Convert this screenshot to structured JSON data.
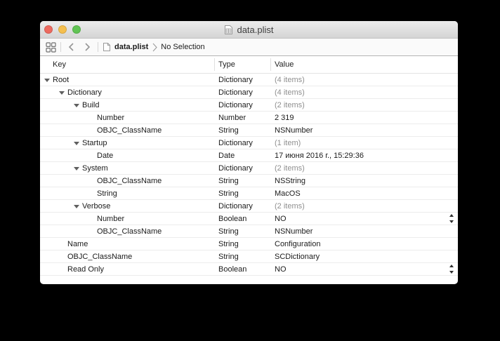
{
  "window": {
    "title": "data.plist"
  },
  "traffic_lights": {
    "close_color": "#ED6A5F",
    "minimize_color": "#F5BF4E",
    "zoom_color": "#61C454"
  },
  "jump_bar": {
    "document": "data.plist",
    "selection": "No Selection"
  },
  "table": {
    "columns": [
      "Key",
      "Type",
      "Value"
    ],
    "rows": [
      {
        "key": "Root",
        "type": "Dictionary",
        "value": "(4 items)",
        "level": 0,
        "expandable": true,
        "muted": true,
        "stepper": false
      },
      {
        "key": "Dictionary",
        "type": "Dictionary",
        "value": "(4 items)",
        "level": 1,
        "expandable": true,
        "muted": true,
        "stepper": false
      },
      {
        "key": "Build",
        "type": "Dictionary",
        "value": "(2 items)",
        "level": 2,
        "expandable": true,
        "muted": true,
        "stepper": false
      },
      {
        "key": "Number",
        "type": "Number",
        "value": "2 319",
        "level": 3,
        "expandable": false,
        "muted": false,
        "stepper": false
      },
      {
        "key": "OBJC_ClassName",
        "type": "String",
        "value": "NSNumber",
        "level": 3,
        "expandable": false,
        "muted": false,
        "stepper": false
      },
      {
        "key": "Startup",
        "type": "Dictionary",
        "value": "(1 item)",
        "level": 2,
        "expandable": true,
        "muted": true,
        "stepper": false
      },
      {
        "key": "Date",
        "type": "Date",
        "value": "17 июня 2016 г., 15:29:36",
        "level": 3,
        "expandable": false,
        "muted": false,
        "stepper": false
      },
      {
        "key": "System",
        "type": "Dictionary",
        "value": "(2 items)",
        "level": 2,
        "expandable": true,
        "muted": true,
        "stepper": false
      },
      {
        "key": "OBJC_ClassName",
        "type": "String",
        "value": "NSString",
        "level": 3,
        "expandable": false,
        "muted": false,
        "stepper": false
      },
      {
        "key": "String",
        "type": "String",
        "value": "MacOS",
        "level": 3,
        "expandable": false,
        "muted": false,
        "stepper": false
      },
      {
        "key": "Verbose",
        "type": "Dictionary",
        "value": "(2 items)",
        "level": 2,
        "expandable": true,
        "muted": true,
        "stepper": false
      },
      {
        "key": "Number",
        "type": "Boolean",
        "value": "NO",
        "level": 3,
        "expandable": false,
        "muted": false,
        "stepper": true
      },
      {
        "key": "OBJC_ClassName",
        "type": "String",
        "value": "NSNumber",
        "level": 3,
        "expandable": false,
        "muted": false,
        "stepper": false
      },
      {
        "key": "Name",
        "type": "String",
        "value": "Configuration",
        "level": 1,
        "expandable": false,
        "muted": false,
        "stepper": false
      },
      {
        "key": "OBJC_ClassName",
        "type": "String",
        "value": "SCDictionary",
        "level": 1,
        "expandable": false,
        "muted": false,
        "stepper": false
      },
      {
        "key": "Read Only",
        "type": "Boolean",
        "value": "NO",
        "level": 1,
        "expandable": false,
        "muted": false,
        "stepper": true
      }
    ]
  },
  "colors": {
    "muted_value": "#8f8f8f",
    "titlebar_top": "#ececec",
    "titlebar_bottom": "#d5d5d5"
  }
}
